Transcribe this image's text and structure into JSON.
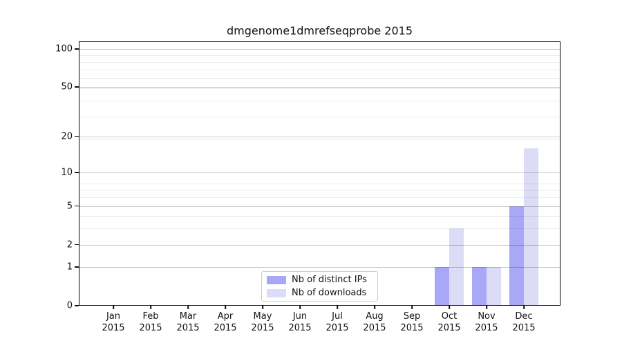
{
  "chart_data": {
    "type": "bar",
    "title": "dmgenome1dmrefseqprobe 2015",
    "categories": [
      "Jan",
      "Feb",
      "Mar",
      "Apr",
      "May",
      "Jun",
      "Jul",
      "Aug",
      "Sep",
      "Oct",
      "Nov",
      "Dec"
    ],
    "category_year": "2015",
    "series": [
      {
        "name": "Nb of distinct IPs",
        "color": "#a8a8f6",
        "values": [
          0,
          0,
          0,
          0,
          0,
          0,
          0,
          0,
          0,
          1,
          1,
          5
        ]
      },
      {
        "name": "Nb of downloads",
        "color": "#dcdcf7",
        "values": [
          0,
          0,
          0,
          0,
          0,
          0,
          0,
          0,
          0,
          3,
          1,
          16
        ]
      }
    ],
    "xlabel": "",
    "ylabel": "",
    "yscale": "log1p",
    "ylim": [
      0,
      115
    ],
    "yticks": [
      0,
      1,
      2,
      5,
      10,
      20,
      50,
      100
    ],
    "minor_yticks": [
      3,
      4,
      6,
      7,
      8,
      19,
      29,
      39,
      49,
      59,
      69,
      79,
      89
    ],
    "grid": "horizontal",
    "legend_position": "lower center"
  }
}
